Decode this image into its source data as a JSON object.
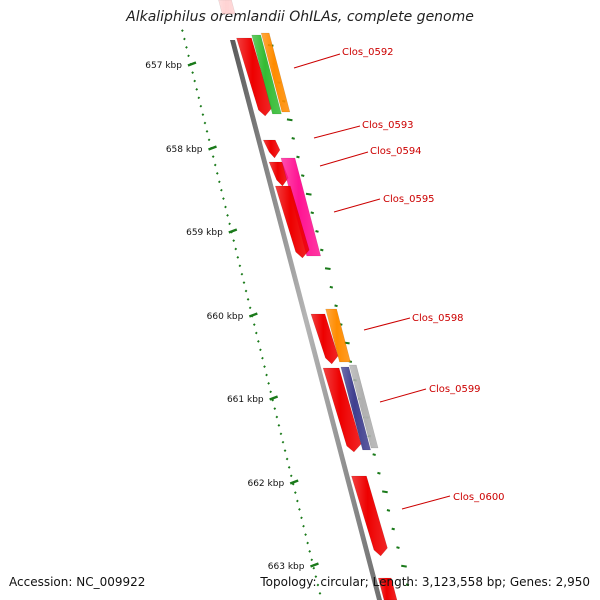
{
  "title": "Alkaliphilus oremlandii OhILAs, complete genome",
  "footer": {
    "accession": "Accession: NC_009922",
    "summary": "Topology: circular; Length: 3,123,558 bp; Genes: 2,950"
  },
  "colors": {
    "backbone": "#8a8a8a",
    "ticks": "#1a7a1a",
    "label": "#cc0000",
    "gene_red": "#ee0000",
    "gene_green": "#33bb33",
    "gene_orange": "#ff8c00",
    "gene_magenta": "#ff1493",
    "gene_navy": "#3f3f8f",
    "gene_gray": "#b0b0b0",
    "gene_pink": "#ffc8c8"
  },
  "ruler": [
    {
      "label": "657 kbp",
      "kbp": 657
    },
    {
      "label": "658 kbp",
      "kbp": 658
    },
    {
      "label": "659 kbp",
      "kbp": 659
    },
    {
      "label": "660 kbp",
      "kbp": 660
    },
    {
      "label": "661 kbp",
      "kbp": 661
    },
    {
      "label": "662 kbp",
      "kbp": 662
    },
    {
      "label": "663 kbp",
      "kbp": 663
    }
  ],
  "gene_labels": [
    {
      "name": "Clos_0592"
    },
    {
      "name": "Clos_0593"
    },
    {
      "name": "Clos_0594"
    },
    {
      "name": "Clos_0595"
    },
    {
      "name": "Clos_0598"
    },
    {
      "name": "Clos_0599"
    },
    {
      "name": "Clos_0600"
    }
  ]
}
